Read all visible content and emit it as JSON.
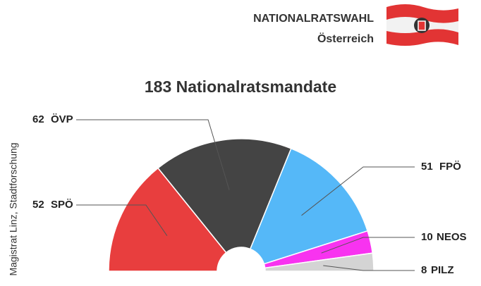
{
  "header": {
    "title": "NATIONALRATSWAHL",
    "subtitle": "Österreich"
  },
  "source": "Magistrat Linz, Stadtforschung",
  "chart_data": {
    "type": "semi-donut",
    "title": "183 Nationalratsmandate",
    "categories": [
      "SPÖ",
      "ÖVP",
      "FPÖ",
      "NEOS",
      "PILZ"
    ],
    "values": [
      52,
      62,
      51,
      10,
      8
    ],
    "colors": [
      "#e83e3e",
      "#444444",
      "#55b8f8",
      "#f833f0",
      "#d4d4d4"
    ]
  }
}
